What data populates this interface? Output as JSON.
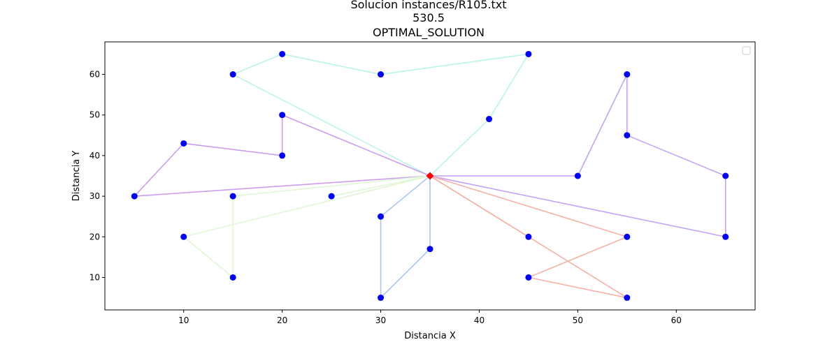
{
  "chart_data": {
    "type": "scatter",
    "title_lines": [
      "Solucion instances/R105.txt",
      "530.5",
      "OPTIMAL_SOLUTION"
    ],
    "xlabel": "Distancia X",
    "ylabel": "Distancia Y",
    "xlim": [
      2,
      68
    ],
    "ylim": [
      2,
      68
    ],
    "xticks": [
      10,
      20,
      30,
      40,
      50,
      60
    ],
    "yticks": [
      10,
      20,
      30,
      40,
      50,
      60
    ],
    "legend": {
      "placement": "top-right",
      "entries": []
    },
    "depot": {
      "x": 35,
      "y": 35,
      "color": "#ff0000",
      "marker": "diamond"
    },
    "customer_color": "#0000ff",
    "customers": [
      {
        "x": 15,
        "y": 60
      },
      {
        "x": 20,
        "y": 65
      },
      {
        "x": 30,
        "y": 60
      },
      {
        "x": 45,
        "y": 65
      },
      {
        "x": 41,
        "y": 49
      },
      {
        "x": 55,
        "y": 60
      },
      {
        "x": 55,
        "y": 45
      },
      {
        "x": 65,
        "y": 35
      },
      {
        "x": 65,
        "y": 20
      },
      {
        "x": 50,
        "y": 35
      },
      {
        "x": 20,
        "y": 50
      },
      {
        "x": 20,
        "y": 40
      },
      {
        "x": 10,
        "y": 43
      },
      {
        "x": 5,
        "y": 30
      },
      {
        "x": 15,
        "y": 30
      },
      {
        "x": 25,
        "y": 30
      },
      {
        "x": 10,
        "y": 20
      },
      {
        "x": 15,
        "y": 10
      },
      {
        "x": 30,
        "y": 25
      },
      {
        "x": 30,
        "y": 5
      },
      {
        "x": 35,
        "y": 17
      },
      {
        "x": 45,
        "y": 20
      },
      {
        "x": 45,
        "y": 10
      },
      {
        "x": 55,
        "y": 20
      },
      {
        "x": 55,
        "y": 5
      }
    ],
    "routes": [
      {
        "color": "#b9f5e8",
        "points": [
          [
            35,
            35
          ],
          [
            15,
            60
          ],
          [
            20,
            65
          ],
          [
            30,
            60
          ],
          [
            45,
            65
          ],
          [
            41,
            49
          ],
          [
            35,
            35
          ]
        ]
      },
      {
        "color": "#c3a3f7",
        "points": [
          [
            35,
            35
          ],
          [
            50,
            35
          ],
          [
            55,
            60
          ],
          [
            55,
            45
          ],
          [
            65,
            35
          ],
          [
            65,
            20
          ],
          [
            35,
            35
          ]
        ]
      },
      {
        "color": "#cc9cf0",
        "points": [
          [
            35,
            35
          ],
          [
            20,
            50
          ],
          [
            20,
            40
          ],
          [
            10,
            43
          ],
          [
            5,
            30
          ],
          [
            35,
            35
          ]
        ]
      },
      {
        "color": "#dff7d4",
        "points": [
          [
            35,
            35
          ],
          [
            25,
            30
          ],
          [
            35,
            35
          ]
        ]
      },
      {
        "color": "#dff7d4",
        "points": [
          [
            35,
            35
          ],
          [
            15,
            30
          ],
          [
            15,
            10
          ],
          [
            10,
            20
          ],
          [
            35,
            35
          ]
        ]
      },
      {
        "color": "#a9c6f4",
        "points": [
          [
            35,
            35
          ],
          [
            30,
            25
          ],
          [
            30,
            5
          ],
          [
            35,
            17
          ],
          [
            35,
            35
          ]
        ]
      },
      {
        "color": "#f7b0a6",
        "points": [
          [
            35,
            35
          ],
          [
            45,
            20
          ],
          [
            35,
            35
          ]
        ]
      },
      {
        "color": "#f7b0a6",
        "points": [
          [
            35,
            35
          ],
          [
            55,
            20
          ],
          [
            45,
            10
          ],
          [
            55,
            5
          ],
          [
            35,
            35
          ]
        ]
      }
    ]
  }
}
